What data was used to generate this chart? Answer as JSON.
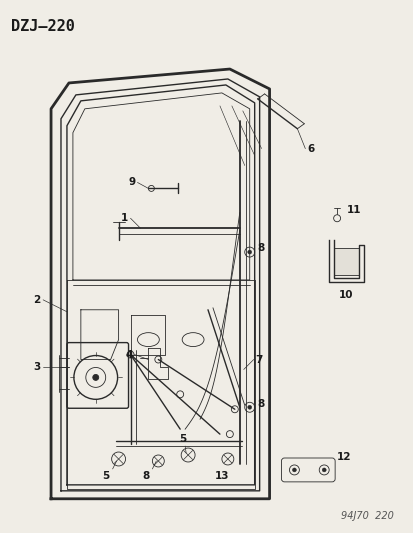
{
  "title": "DZJ–220",
  "footer": "94J70  220",
  "bg_color": "#f0ede6",
  "line_color": "#2a2a2a",
  "label_color": "#1a1a1a",
  "title_fontsize": 11,
  "footer_fontsize": 7,
  "label_fontsize": 7.5,
  "fig_w": 4.14,
  "fig_h": 5.33,
  "dpi": 100
}
